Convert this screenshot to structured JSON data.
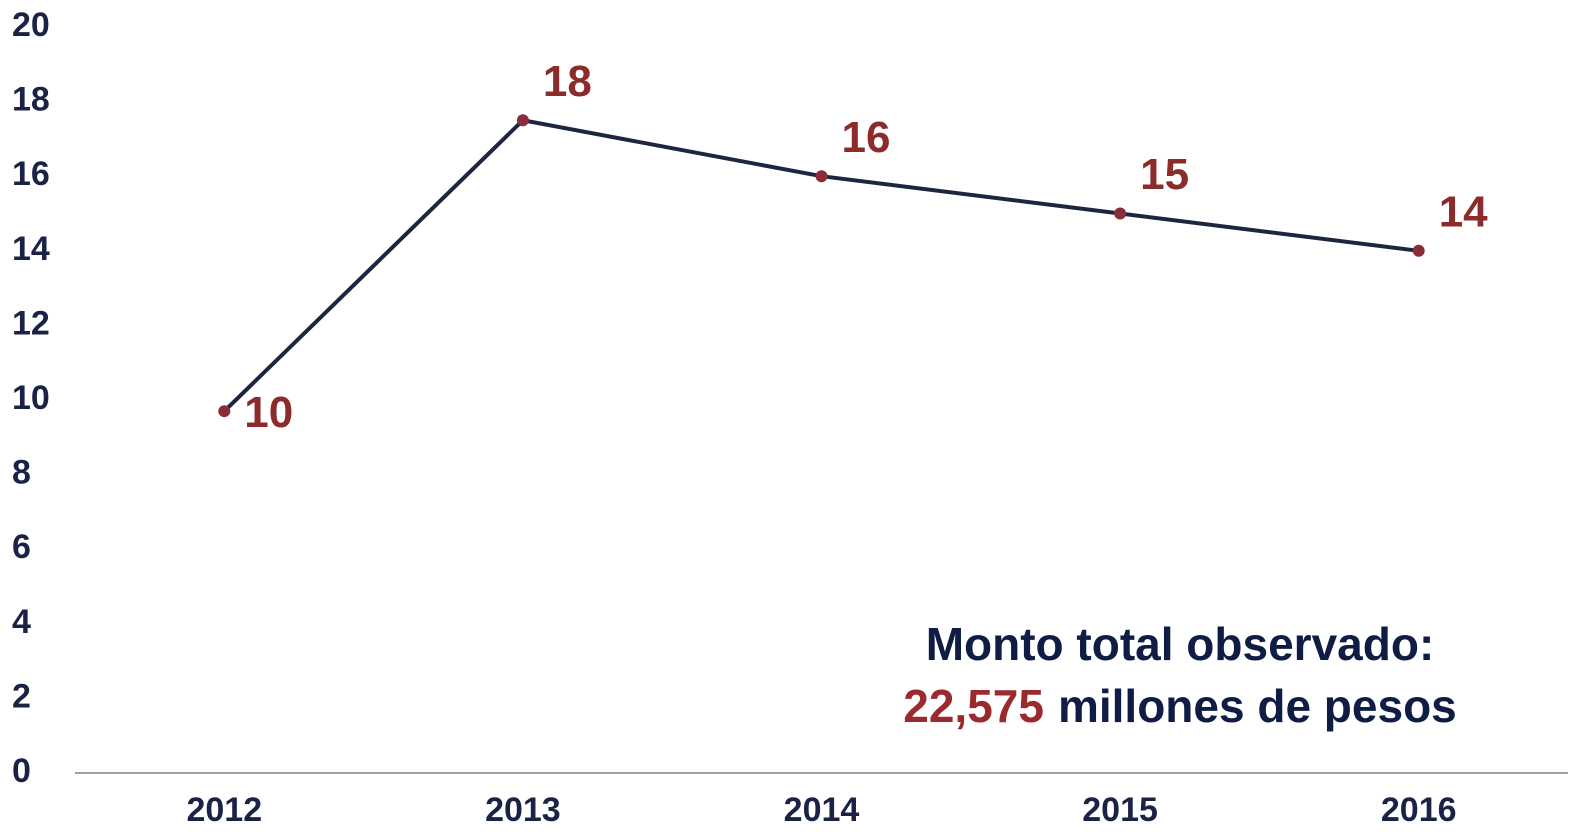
{
  "chart_data": {
    "type": "line",
    "categories": [
      "2012",
      "2013",
      "2014",
      "2015",
      "2016"
    ],
    "series": [
      {
        "color": "#1c2640",
        "marker_color": "#8b2c3a",
        "values": [
          9.7,
          17.5,
          16,
          15,
          14
        ],
        "value_labels": [
          "10",
          "18",
          "16",
          "15",
          "14"
        ]
      }
    ],
    "ylim": [
      0,
      20
    ],
    "yticks": [
      0,
      2,
      4,
      6,
      8,
      10,
      12,
      14,
      16,
      18,
      20
    ],
    "grid": false,
    "annotation": {
      "line1": "Monto total observado:",
      "highlight": "22,575",
      "rest": "millones de pesos"
    }
  }
}
